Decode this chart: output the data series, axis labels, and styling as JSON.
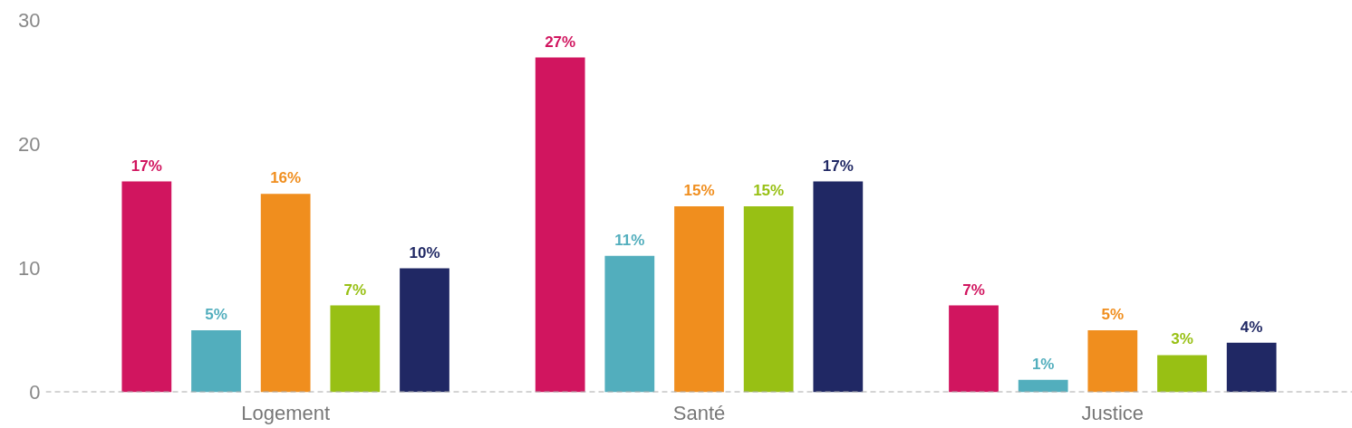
{
  "chart_data": {
    "type": "bar",
    "categories": [
      "Logement",
      "Santé",
      "Justice"
    ],
    "series": [
      {
        "color": "#d1155f",
        "values": [
          17,
          27,
          7
        ],
        "value_labels": [
          "17%",
          "27%",
          "7%"
        ]
      },
      {
        "color": "#52aebd",
        "values": [
          5,
          11,
          1
        ],
        "value_labels": [
          "5%",
          "11%",
          "1%"
        ]
      },
      {
        "color": "#f08e1e",
        "values": [
          16,
          15,
          5
        ],
        "value_labels": [
          "16%",
          "15%",
          "5%"
        ]
      },
      {
        "color": "#98c014",
        "values": [
          7,
          15,
          3
        ],
        "value_labels": [
          "7%",
          "15%",
          "3%"
        ]
      },
      {
        "color": "#202864",
        "values": [
          10,
          17,
          4
        ],
        "value_labels": [
          "10%",
          "17%",
          "4%"
        ]
      }
    ],
    "ylim": [
      0,
      30
    ],
    "yticks": [
      0,
      10,
      20,
      30
    ],
    "grid": false,
    "ref_lines": [
      {
        "axis": "y",
        "value": 0,
        "line_style": "dashed",
        "color": "#aaaaaa"
      }
    ]
  }
}
